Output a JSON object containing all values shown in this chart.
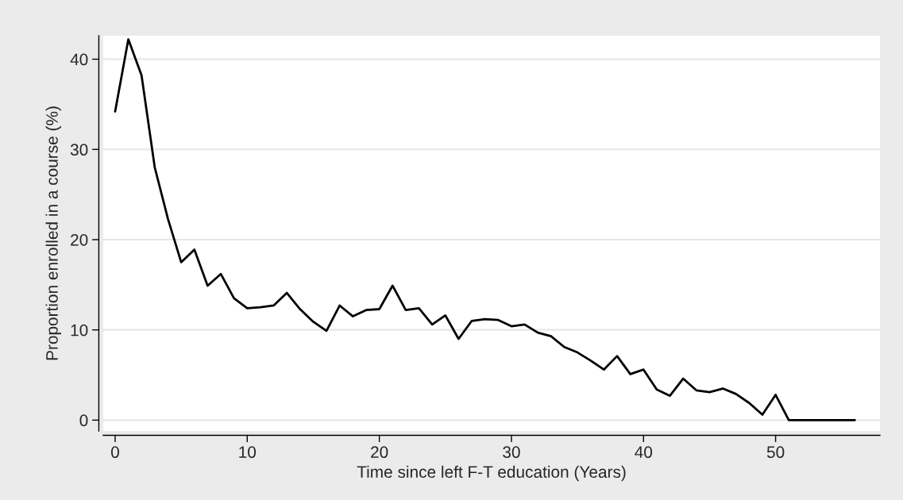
{
  "chart_data": {
    "type": "line",
    "xlabel": "Time since left F-T education (Years)",
    "ylabel": "Proportion enrolled in a course (%)",
    "x": [
      0,
      1,
      2,
      3,
      4,
      5,
      6,
      7,
      8,
      9,
      10,
      11,
      12,
      13,
      14,
      15,
      16,
      17,
      18,
      19,
      20,
      21,
      22,
      23,
      24,
      25,
      26,
      27,
      28,
      29,
      30,
      31,
      32,
      33,
      34,
      35,
      36,
      37,
      38,
      39,
      40,
      41,
      42,
      43,
      44,
      45,
      46,
      47,
      48,
      49,
      50,
      51,
      52,
      53,
      54,
      55,
      56
    ],
    "series": [
      {
        "color": "#000000",
        "values": [
          34.2,
          42.2,
          38.2,
          28.0,
          22.3,
          17.5,
          18.9,
          14.9,
          16.2,
          13.5,
          12.4,
          12.5,
          12.7,
          14.1,
          12.3,
          10.9,
          9.9,
          12.7,
          11.5,
          12.2,
          12.3,
          14.9,
          12.2,
          12.4,
          10.6,
          11.6,
          9.0,
          11.0,
          11.2,
          11.1,
          10.4,
          10.6,
          9.7,
          9.3,
          8.1,
          7.5,
          6.6,
          5.6,
          7.1,
          5.1,
          5.6,
          3.4,
          2.7,
          4.6,
          3.3,
          3.1,
          3.5,
          2.9,
          1.9,
          0.6,
          2.8,
          0,
          0,
          0,
          0,
          0,
          0
        ]
      }
    ],
    "xlim": [
      -0.9,
      57.9
    ],
    "ylim": [
      -1.2,
      42.6
    ],
    "xticks": [
      0,
      10,
      20,
      30,
      40,
      50
    ],
    "yticks": [
      0,
      10,
      20,
      30,
      40
    ],
    "grid": "y",
    "legend": false,
    "marker": "none",
    "line_style": "solid"
  }
}
